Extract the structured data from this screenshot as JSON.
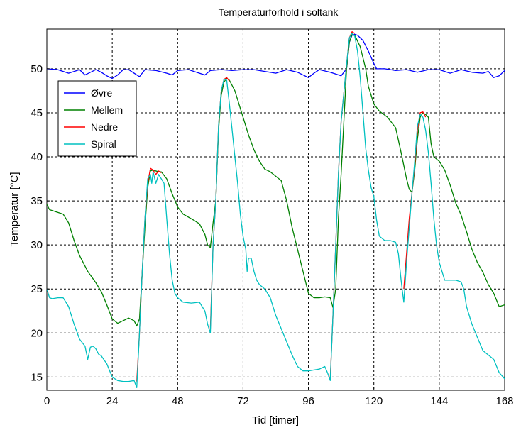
{
  "chart_data": {
    "type": "line",
    "title": "Temperaturforhold i soltank",
    "xlabel": "Tid [timer]",
    "ylabel": "Temperatur [°C]",
    "xlim": [
      0,
      168
    ],
    "ylim": [
      13.5,
      54.5
    ],
    "xticks": [
      0,
      24,
      48,
      72,
      96,
      120,
      144,
      168
    ],
    "yticks": [
      15,
      20,
      25,
      30,
      35,
      40,
      45,
      50
    ],
    "grid": true,
    "legend_position": "upper-left",
    "series": [
      {
        "name": "Øvre",
        "color": "#0000ff",
        "points": [
          [
            0,
            50.0
          ],
          [
            4,
            49.9
          ],
          [
            8,
            49.5
          ],
          [
            12,
            49.9
          ],
          [
            14,
            49.3
          ],
          [
            18,
            49.9
          ],
          [
            20,
            49.6
          ],
          [
            22,
            49.2
          ],
          [
            24,
            48.9
          ],
          [
            26,
            49.3
          ],
          [
            28,
            49.9
          ],
          [
            30,
            49.9
          ],
          [
            32,
            49.5
          ],
          [
            34,
            49.1
          ],
          [
            36,
            49.9
          ],
          [
            40,
            49.8
          ],
          [
            44,
            49.5
          ],
          [
            46,
            49.3
          ],
          [
            48,
            49.8
          ],
          [
            52,
            49.9
          ],
          [
            56,
            49.5
          ],
          [
            58,
            49.3
          ],
          [
            60,
            49.8
          ],
          [
            64,
            49.9
          ],
          [
            68,
            49.8
          ],
          [
            72,
            49.9
          ],
          [
            76,
            49.9
          ],
          [
            80,
            49.7
          ],
          [
            84,
            49.5
          ],
          [
            88,
            49.9
          ],
          [
            92,
            49.6
          ],
          [
            96,
            49.0
          ],
          [
            98,
            49.5
          ],
          [
            100,
            49.9
          ],
          [
            104,
            49.6
          ],
          [
            108,
            49.2
          ],
          [
            110,
            50.0
          ],
          [
            111,
            53.0
          ],
          [
            112,
            53.8
          ],
          [
            113,
            53.9
          ],
          [
            114,
            53.8
          ],
          [
            116,
            53.2
          ],
          [
            118,
            52.0
          ],
          [
            120,
            50.6
          ],
          [
            121,
            50.0
          ],
          [
            124,
            50.0
          ],
          [
            128,
            49.8
          ],
          [
            132,
            49.9
          ],
          [
            136,
            49.6
          ],
          [
            140,
            49.9
          ],
          [
            144,
            49.9
          ],
          [
            148,
            49.5
          ],
          [
            152,
            49.9
          ],
          [
            156,
            49.6
          ],
          [
            160,
            49.5
          ],
          [
            162,
            49.7
          ],
          [
            164,
            49.0
          ],
          [
            166,
            49.2
          ],
          [
            168,
            49.8
          ]
        ]
      },
      {
        "name": "Mellem",
        "color": "#008000",
        "points": [
          [
            0,
            34.6
          ],
          [
            1,
            34.0
          ],
          [
            3,
            33.8
          ],
          [
            6,
            33.5
          ],
          [
            8,
            32.5
          ],
          [
            10,
            30.5
          ],
          [
            12,
            28.8
          ],
          [
            15,
            27.0
          ],
          [
            18,
            25.7
          ],
          [
            20,
            24.7
          ],
          [
            22,
            23.2
          ],
          [
            24,
            21.6
          ],
          [
            26,
            21.1
          ],
          [
            28,
            21.4
          ],
          [
            30,
            21.7
          ],
          [
            32,
            21.4
          ],
          [
            33,
            20.8
          ],
          [
            34,
            21.6
          ],
          [
            36,
            32.0
          ],
          [
            37,
            36.5
          ],
          [
            38,
            38.4
          ],
          [
            39,
            38.5
          ],
          [
            41,
            38.3
          ],
          [
            42,
            38.3
          ],
          [
            44,
            37.5
          ],
          [
            46,
            35.8
          ],
          [
            48,
            34.3
          ],
          [
            50,
            33.5
          ],
          [
            54,
            32.8
          ],
          [
            56,
            32.4
          ],
          [
            58,
            31.2
          ],
          [
            59,
            30.0
          ],
          [
            60,
            29.7
          ],
          [
            61,
            32.5
          ],
          [
            62,
            35.0
          ],
          [
            63,
            43.0
          ],
          [
            64,
            47.0
          ],
          [
            65,
            48.5
          ],
          [
            66,
            48.9
          ],
          [
            67,
            48.7
          ],
          [
            69,
            47.5
          ],
          [
            72,
            44.5
          ],
          [
            74,
            42.5
          ],
          [
            76,
            40.8
          ],
          [
            78,
            39.5
          ],
          [
            80,
            38.6
          ],
          [
            82,
            38.3
          ],
          [
            86,
            37.3
          ],
          [
            88,
            35.0
          ],
          [
            90,
            32.0
          ],
          [
            92,
            29.5
          ],
          [
            94,
            27.0
          ],
          [
            96,
            24.5
          ],
          [
            98,
            24.0
          ],
          [
            100,
            24.0
          ],
          [
            102,
            24.1
          ],
          [
            104,
            24.0
          ],
          [
            105,
            22.9
          ],
          [
            106,
            25.0
          ],
          [
            107,
            33.0
          ],
          [
            108,
            38.0
          ],
          [
            110,
            50.0
          ],
          [
            111,
            53.0
          ],
          [
            112,
            53.9
          ],
          [
            113,
            53.8
          ],
          [
            115,
            52.5
          ],
          [
            117,
            50.0
          ],
          [
            118,
            48.0
          ],
          [
            120,
            46.0
          ],
          [
            122,
            45.2
          ],
          [
            125,
            44.5
          ],
          [
            128,
            43.3
          ],
          [
            130,
            40.5
          ],
          [
            132,
            37.5
          ],
          [
            133,
            36.3
          ],
          [
            134,
            36.0
          ],
          [
            135,
            38.5
          ],
          [
            136,
            42.0
          ],
          [
            137,
            44.5
          ],
          [
            138,
            45.0
          ],
          [
            139,
            44.8
          ],
          [
            140,
            44.5
          ],
          [
            141,
            41.5
          ],
          [
            142,
            40.0
          ],
          [
            144,
            39.5
          ],
          [
            146,
            38.5
          ],
          [
            148,
            36.8
          ],
          [
            150,
            34.8
          ],
          [
            152,
            33.4
          ],
          [
            154,
            31.5
          ],
          [
            156,
            29.5
          ],
          [
            158,
            28.0
          ],
          [
            160,
            26.9
          ],
          [
            162,
            25.5
          ],
          [
            164,
            24.5
          ],
          [
            166,
            23.0
          ],
          [
            168,
            23.2
          ]
        ]
      },
      {
        "name": "Nedre",
        "color": "#ff0000",
        "points": [
          [
            33,
            14.5
          ],
          [
            34,
            20.0
          ],
          [
            35,
            27.0
          ],
          [
            36,
            33.0
          ],
          [
            37,
            37.0
          ],
          [
            38,
            38.7
          ],
          [
            39,
            38.5
          ],
          [
            40,
            38.0
          ],
          [
            41,
            38.4
          ],
          [
            42,
            38.2
          ],
          [
            60,
            20.5
          ],
          [
            61,
            30.0
          ],
          [
            62,
            35.0
          ],
          [
            63,
            43.5
          ],
          [
            64,
            47.5
          ],
          [
            65,
            48.8
          ],
          [
            66,
            49.0
          ],
          [
            67,
            48.6
          ],
          [
            104,
            14.8
          ],
          [
            105,
            22.0
          ],
          [
            106,
            30.0
          ],
          [
            107,
            38.0
          ],
          [
            108,
            44.0
          ],
          [
            110,
            50.5
          ],
          [
            111,
            53.5
          ],
          [
            112,
            54.2
          ],
          [
            113,
            54.0
          ],
          [
            131,
            25.0
          ],
          [
            132,
            29.0
          ],
          [
            133,
            33.0
          ],
          [
            134,
            36.0
          ],
          [
            135,
            39.0
          ],
          [
            136,
            43.0
          ],
          [
            137,
            45.0
          ],
          [
            138,
            45.1
          ],
          [
            139,
            44.5
          ]
        ]
      },
      {
        "name": "Spiral",
        "color": "#00c0c0",
        "points": [
          [
            0,
            25.0
          ],
          [
            1,
            24.0
          ],
          [
            2,
            23.9
          ],
          [
            4,
            24.0
          ],
          [
            6,
            24.0
          ],
          [
            8,
            23.0
          ],
          [
            10,
            21.0
          ],
          [
            12,
            19.3
          ],
          [
            14,
            18.5
          ],
          [
            15,
            17.0
          ],
          [
            16,
            18.4
          ],
          [
            17,
            18.5
          ],
          [
            18,
            18.2
          ],
          [
            19,
            17.6
          ],
          [
            20,
            17.4
          ],
          [
            22,
            16.5
          ],
          [
            24,
            15.0
          ],
          [
            26,
            14.6
          ],
          [
            28,
            14.5
          ],
          [
            30,
            14.5
          ],
          [
            32,
            14.6
          ],
          [
            33,
            13.8
          ],
          [
            34,
            20.0
          ],
          [
            35,
            27.0
          ],
          [
            36,
            33.0
          ],
          [
            37,
            37.5
          ],
          [
            38,
            38.0
          ],
          [
            38.5,
            37.0
          ],
          [
            39,
            38.3
          ],
          [
            40,
            37.0
          ],
          [
            41,
            38.0
          ],
          [
            42,
            37.5
          ],
          [
            43,
            37.0
          ],
          [
            44,
            33.0
          ],
          [
            45,
            29.0
          ],
          [
            46,
            26.0
          ],
          [
            47,
            24.5
          ],
          [
            48,
            24.0
          ],
          [
            50,
            23.5
          ],
          [
            53,
            23.4
          ],
          [
            56,
            23.5
          ],
          [
            58,
            22.5
          ],
          [
            59,
            21.0
          ],
          [
            60,
            20.0
          ],
          [
            61,
            30.0
          ],
          [
            62,
            35.0
          ],
          [
            63,
            43.5
          ],
          [
            64,
            47.5
          ],
          [
            65,
            48.8
          ],
          [
            66,
            48.7
          ],
          [
            67,
            46.0
          ],
          [
            68,
            43.0
          ],
          [
            69,
            40.0
          ],
          [
            70,
            37.0
          ],
          [
            71,
            33.5
          ],
          [
            72,
            31.0
          ],
          [
            73,
            29.5
          ],
          [
            73.5,
            27.0
          ],
          [
            74,
            28.5
          ],
          [
            75,
            28.5
          ],
          [
            76,
            27.0
          ],
          [
            77,
            26.0
          ],
          [
            78,
            25.5
          ],
          [
            80,
            25.0
          ],
          [
            82,
            24.0
          ],
          [
            84,
            22.0
          ],
          [
            86,
            20.5
          ],
          [
            88,
            19.0
          ],
          [
            90,
            17.5
          ],
          [
            92,
            16.2
          ],
          [
            94,
            15.7
          ],
          [
            96,
            15.7
          ],
          [
            98,
            15.8
          ],
          [
            100,
            15.9
          ],
          [
            102,
            16.2
          ],
          [
            103,
            15.5
          ],
          [
            104,
            14.6
          ],
          [
            105,
            22.0
          ],
          [
            106,
            30.0
          ],
          [
            107,
            38.0
          ],
          [
            108,
            44.0
          ],
          [
            110,
            50.5
          ],
          [
            111,
            53.5
          ],
          [
            112,
            54.0
          ],
          [
            113,
            53.7
          ],
          [
            114,
            52.0
          ],
          [
            115,
            49.0
          ],
          [
            116,
            45.0
          ],
          [
            117,
            41.0
          ],
          [
            118,
            38.5
          ],
          [
            119,
            36.5
          ],
          [
            120,
            35.5
          ],
          [
            121,
            32.8
          ],
          [
            122,
            31.0
          ],
          [
            124,
            30.5
          ],
          [
            126,
            30.5
          ],
          [
            128,
            30.3
          ],
          [
            129,
            29.0
          ],
          [
            130,
            26.0
          ],
          [
            131,
            23.5
          ],
          [
            132,
            28.0
          ],
          [
            133,
            32.0
          ],
          [
            134,
            36.0
          ],
          [
            135,
            39.5
          ],
          [
            136,
            43.5
          ],
          [
            137,
            44.8
          ],
          [
            138,
            44.5
          ],
          [
            139,
            43.0
          ],
          [
            140,
            40.5
          ],
          [
            141,
            37.0
          ],
          [
            142,
            33.0
          ],
          [
            143,
            30.0
          ],
          [
            144,
            28.0
          ],
          [
            145,
            27.0
          ],
          [
            146,
            26.0
          ],
          [
            148,
            26.0
          ],
          [
            150,
            26.0
          ],
          [
            152,
            25.8
          ],
          [
            153,
            25.0
          ],
          [
            154,
            23.0
          ],
          [
            156,
            21.0
          ],
          [
            158,
            19.5
          ],
          [
            160,
            18.0
          ],
          [
            162,
            17.5
          ],
          [
            164,
            17.0
          ],
          [
            166,
            15.5
          ],
          [
            168,
            14.8
          ]
        ]
      }
    ]
  }
}
